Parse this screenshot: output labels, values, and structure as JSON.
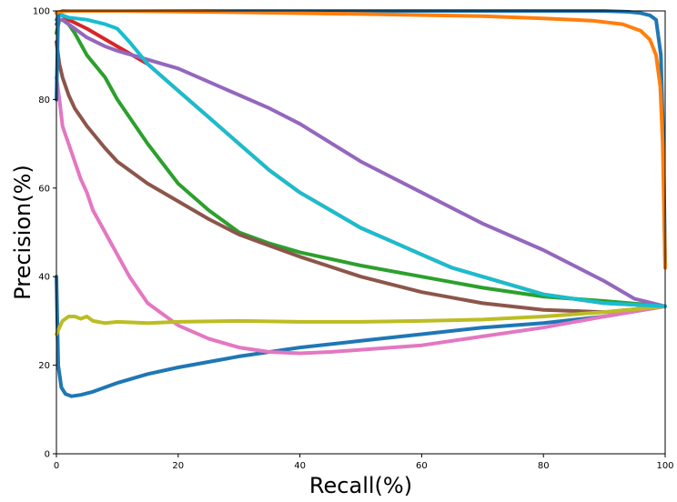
{
  "chart_data": {
    "type": "line",
    "xlabel": "Recall(%)",
    "ylabel": "Precision(%)",
    "xlim": [
      0,
      100
    ],
    "ylim": [
      0,
      100
    ],
    "xticks": [
      "0",
      "20",
      "40",
      "60",
      "80",
      "100"
    ],
    "yticks": [
      "0",
      "20",
      "40",
      "60",
      "80",
      "100"
    ],
    "grid": false,
    "series": [
      {
        "color": "#1f77b4",
        "x": [
          0,
          0.3,
          0.8,
          1.5,
          2.5,
          4,
          6,
          8,
          10,
          15,
          20,
          30,
          40,
          50,
          60,
          70,
          80,
          90,
          100
        ],
        "y": [
          40,
          20,
          15,
          13.5,
          13,
          13.3,
          14,
          15,
          16,
          18,
          19.5,
          22,
          24,
          25.5,
          27,
          28.5,
          29.5,
          31,
          33.3
        ]
      },
      {
        "color": "#d62728",
        "x": [
          0,
          0.5,
          1,
          2,
          5,
          10,
          15,
          20,
          25,
          30,
          35,
          40,
          45,
          50,
          55,
          60,
          65,
          70,
          80,
          90,
          100
        ],
        "y": [
          98,
          99,
          99,
          98,
          96,
          92,
          88,
          82,
          76,
          70,
          64,
          59,
          55,
          51,
          48,
          45,
          42,
          40,
          36,
          34,
          33.3
        ]
      },
      {
        "color": "#2ca02c",
        "x": [
          0,
          0.5,
          1,
          2,
          3,
          5,
          8,
          10,
          15,
          20,
          25,
          30,
          35,
          40,
          50,
          60,
          70,
          80,
          90,
          100
        ],
        "y": [
          95,
          98,
          98,
          97,
          95,
          90,
          85,
          80,
          70,
          61,
          55,
          50,
          47.5,
          45.5,
          42.5,
          40,
          37.5,
          35.5,
          34.5,
          33.3
        ]
      },
      {
        "color": "#8c564b",
        "x": [
          0,
          0.5,
          1,
          2,
          3,
          5,
          8,
          10,
          15,
          20,
          25,
          30,
          35,
          40,
          50,
          60,
          70,
          80,
          90,
          100
        ],
        "y": [
          93,
          88,
          85,
          81,
          78,
          74,
          69,
          66,
          61,
          57,
          53,
          49.5,
          47,
          44.5,
          40,
          36.5,
          34,
          32.5,
          32,
          33.3
        ]
      },
      {
        "color": "#e377c2",
        "x": [
          0,
          0.5,
          1,
          1.5,
          2,
          3,
          4,
          5,
          6,
          8,
          10,
          12,
          15,
          20,
          25,
          30,
          35,
          40,
          45,
          50,
          60,
          70,
          80,
          90,
          100
        ],
        "y": [
          85,
          80,
          74,
          72,
          70,
          66,
          62,
          59,
          55,
          50,
          45,
          40,
          34,
          29,
          26,
          24,
          23,
          22.7,
          23,
          23.5,
          24.5,
          26.5,
          28.5,
          31,
          33.3
        ]
      },
      {
        "color": "#9467bd",
        "x": [
          0,
          0.5,
          1,
          2,
          5,
          8,
          10,
          15,
          20,
          25,
          30,
          35,
          40,
          50,
          60,
          70,
          80,
          90,
          95,
          100
        ],
        "y": [
          97,
          98,
          98,
          97,
          94,
          92,
          91,
          89,
          87,
          84,
          81,
          78,
          74.5,
          66,
          59,
          52,
          46,
          39,
          35,
          33.3
        ]
      },
      {
        "color": "#bcbd22",
        "x": [
          0,
          0.5,
          1,
          1.5,
          2,
          3,
          4,
          5,
          6,
          8,
          10,
          15,
          20,
          30,
          40,
          50,
          60,
          70,
          80,
          90,
          100
        ],
        "y": [
          27,
          28.5,
          30,
          30.5,
          31,
          31,
          30.5,
          31,
          30,
          29.5,
          29.8,
          29.5,
          29.8,
          30,
          29.8,
          29.8,
          30,
          30.3,
          31,
          32,
          33.3
        ]
      },
      {
        "color": "#17becf",
        "x": [
          0,
          0.5,
          1,
          2,
          5,
          8,
          10,
          12,
          15,
          20,
          25,
          30,
          35,
          40,
          45,
          50,
          55,
          60,
          65,
          70,
          80,
          90,
          100
        ],
        "y": [
          98,
          99,
          99,
          98.5,
          98,
          97,
          96,
          93,
          88,
          82,
          76,
          70,
          64,
          59,
          55,
          51,
          48,
          45,
          42,
          40,
          36,
          34,
          33.3
        ]
      },
      {
        "color": "#1f77b4",
        "x": [
          0,
          0.3,
          1,
          20,
          50,
          80,
          90,
          94,
          96,
          97.5,
          98.5,
          99.3,
          99.7,
          100
        ],
        "y": [
          80,
          99.5,
          100,
          100,
          100,
          100,
          100,
          99.8,
          99.5,
          99,
          98,
          90,
          70,
          43
        ]
      },
      {
        "color": "#ff7f0e",
        "x": [
          0,
          0.5,
          2,
          10,
          30,
          50,
          70,
          80,
          88,
          93,
          96,
          97.5,
          98.5,
          99.2,
          99.6,
          99.8,
          100
        ],
        "y": [
          99.5,
          99.8,
          100,
          100,
          99.7,
          99.3,
          98.8,
          98.3,
          97.8,
          97,
          95.5,
          93.5,
          90,
          83,
          70,
          55,
          42
        ]
      }
    ]
  }
}
